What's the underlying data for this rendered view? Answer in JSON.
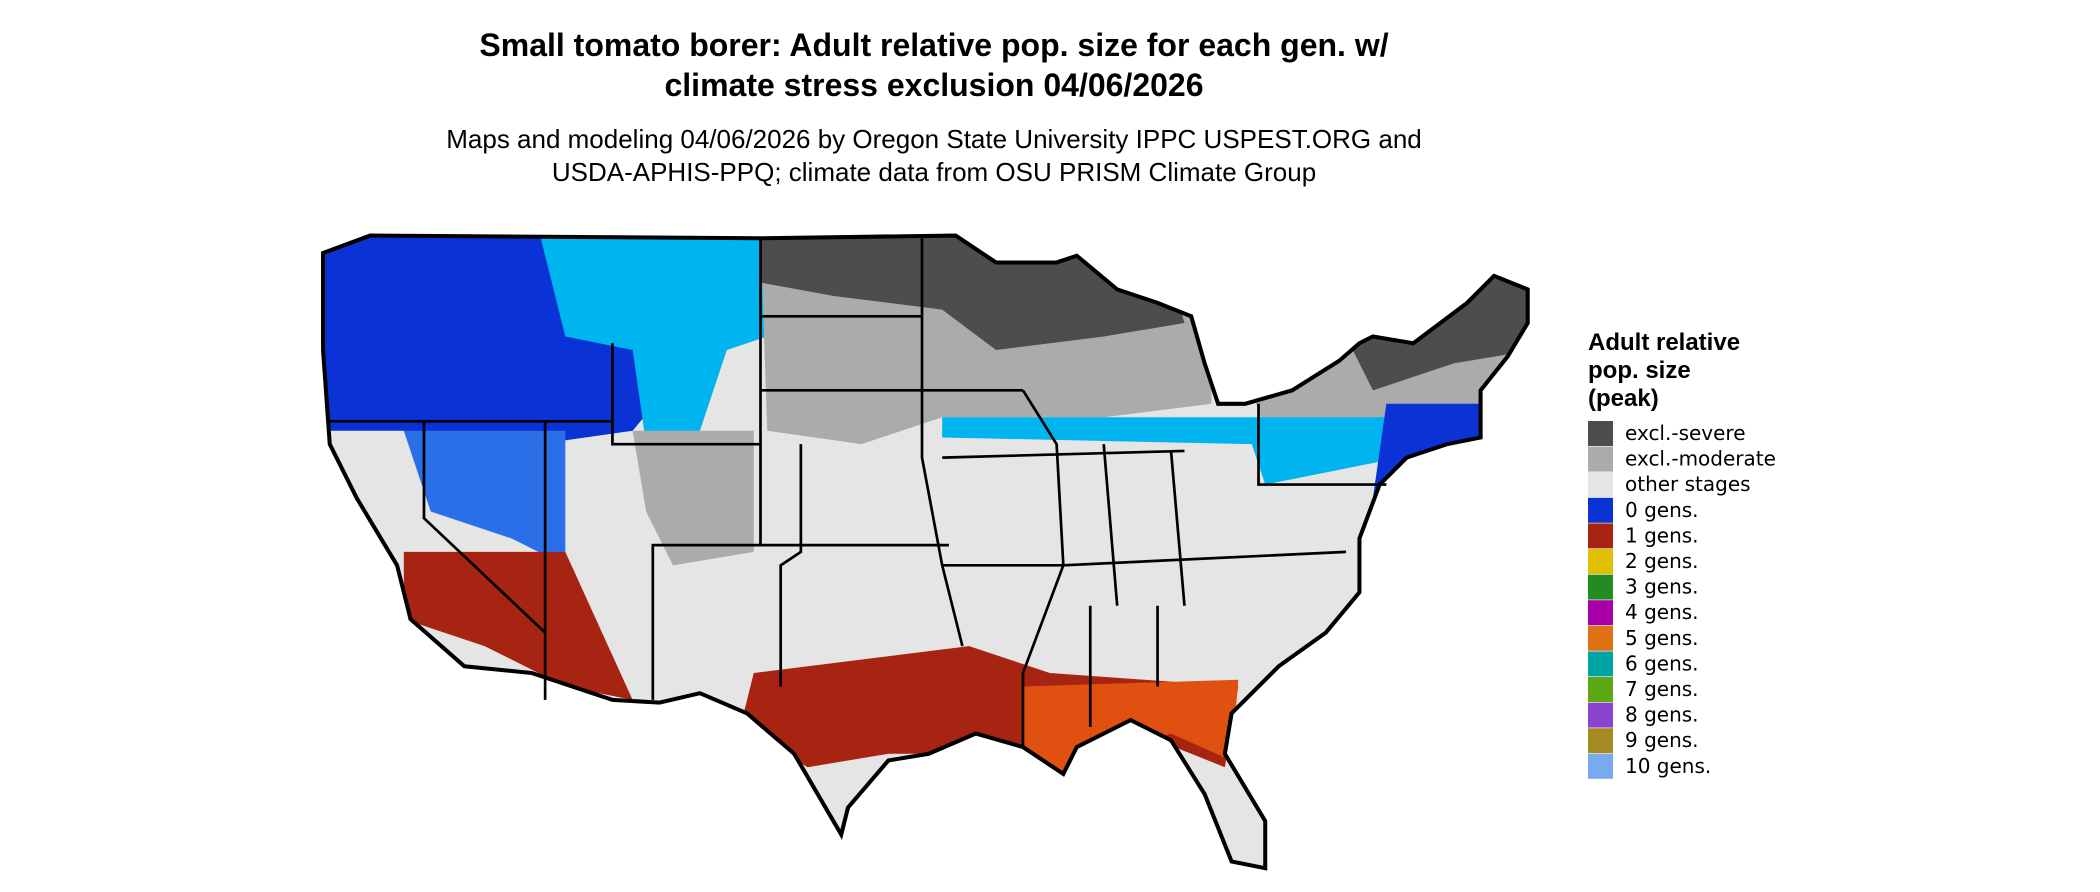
{
  "title": [
    "Small tomato borer: Adult relative pop. size for each gen. w/",
    "climate stress exclusion 04/06/2026"
  ],
  "subtitle": [
    "Maps and modeling 04/06/2026 by Oregon State University IPPC USPEST.ORG and",
    "USDA-APHIS-PPQ; climate data from OSU PRISM Climate Group"
  ],
  "legend": {
    "title": [
      "Adult relative",
      "pop. size",
      "(peak)"
    ],
    "items": [
      {
        "label": "excl.-severe",
        "color": "#4d4d4d"
      },
      {
        "label": "excl.-moderate",
        "color": "#ababab"
      },
      {
        "label": "other stages",
        "color": "#e5e5e5"
      },
      {
        "label": "0 gens.",
        "color": "#0a32d4"
      },
      {
        "label": "1 gens.",
        "color": "#a82412"
      },
      {
        "label": "2 gens.",
        "color": "#e0c000"
      },
      {
        "label": "3 gens.",
        "color": "#228b22"
      },
      {
        "label": "4 gens.",
        "color": "#a800a8"
      },
      {
        "label": "5 gens.",
        "color": "#e07014"
      },
      {
        "label": "6 gens.",
        "color": "#00a3a3"
      },
      {
        "label": "7 gens.",
        "color": "#5aa814"
      },
      {
        "label": "8 gens.",
        "color": "#8a44d0"
      },
      {
        "label": "9 gens.",
        "color": "#a38a22"
      },
      {
        "label": "10 gens.",
        "color": "#78aaee"
      }
    ]
  }
}
